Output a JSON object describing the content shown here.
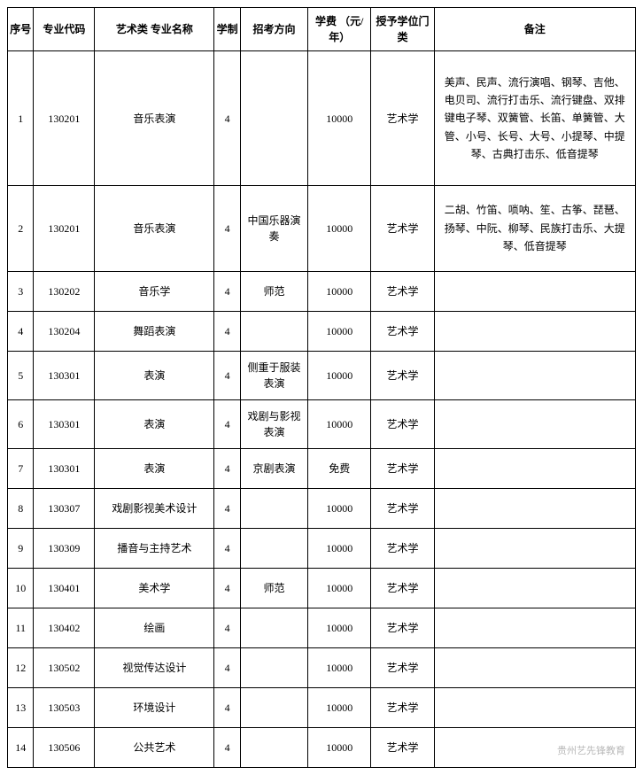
{
  "watermark": "贵州艺先锋教育",
  "columns": [
    "序号",
    "专业代码",
    "艺术类\n专业名称",
    "学制",
    "招考方向",
    "学费\n（元/年）",
    "授予学位门类",
    "备注"
  ],
  "rows": [
    {
      "seq": "1",
      "code": "130201",
      "major": "音乐表演",
      "dur": "4",
      "dir": "",
      "fee": "10000",
      "deg": "艺术学",
      "remark": "美声、民声、流行演唱、钢琴、吉他、电贝司、流行打击乐、流行键盘、双排键电子琴、双簧管、长笛、单簧管、大管、小号、长号、大号、小提琴、中提琴、古典打击乐、低音提琴",
      "cls": "row-tall"
    },
    {
      "seq": "2",
      "code": "130201",
      "major": "音乐表演",
      "dur": "4",
      "dir": "中国乐器演奏",
      "fee": "10000",
      "deg": "艺术学",
      "remark": "二胡、竹笛、唢呐、笙、古筝、琵琶、扬琴、中阮、柳琴、民族打击乐、大提琴、低音提琴",
      "cls": "row-med"
    },
    {
      "seq": "3",
      "code": "130202",
      "major": "音乐学",
      "dur": "4",
      "dir": "师范",
      "fee": "10000",
      "deg": "艺术学",
      "remark": "",
      "cls": "row-norm"
    },
    {
      "seq": "4",
      "code": "130204",
      "major": "舞蹈表演",
      "dur": "4",
      "dir": "",
      "fee": "10000",
      "deg": "艺术学",
      "remark": "",
      "cls": "row-norm"
    },
    {
      "seq": "5",
      "code": "130301",
      "major": "表演",
      "dur": "4",
      "dir": "侧重于服装表演",
      "fee": "10000",
      "deg": "艺术学",
      "remark": "",
      "cls": "row-norm2"
    },
    {
      "seq": "6",
      "code": "130301",
      "major": "表演",
      "dur": "4",
      "dir": "戏剧与影视表演",
      "fee": "10000",
      "deg": "艺术学",
      "remark": "",
      "cls": "row-norm2"
    },
    {
      "seq": "7",
      "code": "130301",
      "major": "表演",
      "dur": "4",
      "dir": "京剧表演",
      "fee": "免费",
      "deg": "艺术学",
      "remark": "",
      "cls": "row-norm"
    },
    {
      "seq": "8",
      "code": "130307",
      "major": "戏剧影视美术设计",
      "dur": "4",
      "dir": "",
      "fee": "10000",
      "deg": "艺术学",
      "remark": "",
      "cls": "row-norm"
    },
    {
      "seq": "9",
      "code": "130309",
      "major": "播音与主持艺术",
      "dur": "4",
      "dir": "",
      "fee": "10000",
      "deg": "艺术学",
      "remark": "",
      "cls": "row-norm"
    },
    {
      "seq": "10",
      "code": "130401",
      "major": "美术学",
      "dur": "4",
      "dir": "师范",
      "fee": "10000",
      "deg": "艺术学",
      "remark": "",
      "cls": "row-norm"
    },
    {
      "seq": "11",
      "code": "130402",
      "major": "绘画",
      "dur": "4",
      "dir": "",
      "fee": "10000",
      "deg": "艺术学",
      "remark": "",
      "cls": "row-norm"
    },
    {
      "seq": "12",
      "code": "130502",
      "major": "视觉传达设计",
      "dur": "4",
      "dir": "",
      "fee": "10000",
      "deg": "艺术学",
      "remark": "",
      "cls": "row-norm"
    },
    {
      "seq": "13",
      "code": "130503",
      "major": "环境设计",
      "dur": "4",
      "dir": "",
      "fee": "10000",
      "deg": "艺术学",
      "remark": "",
      "cls": "row-norm"
    },
    {
      "seq": "14",
      "code": "130506",
      "major": "公共艺术",
      "dur": "4",
      "dir": "",
      "fee": "10000",
      "deg": "艺术学",
      "remark": "",
      "cls": "row-norm"
    }
  ]
}
